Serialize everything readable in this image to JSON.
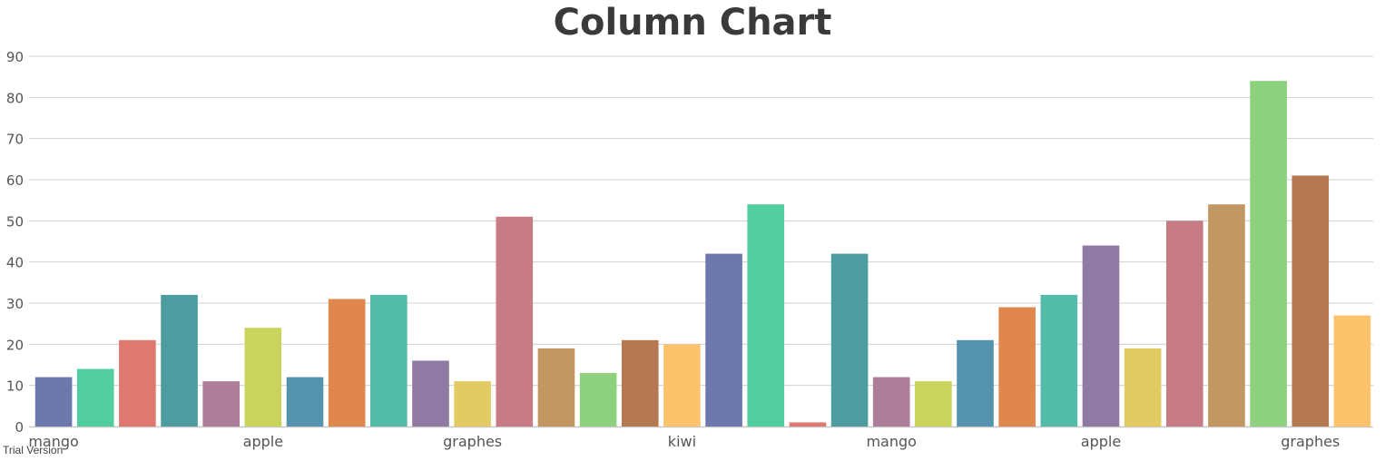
{
  "chart_data": {
    "type": "bar",
    "title": "Column Chart",
    "xlabel": "",
    "ylabel": "",
    "ylim": [
      0,
      90
    ],
    "yticks": [
      0,
      10,
      20,
      30,
      40,
      50,
      60,
      70,
      80,
      90
    ],
    "grid": true,
    "labeled_categories": [
      "mango",
      "apple",
      "graphes",
      "kiwi",
      "mango",
      "apple",
      "graphes"
    ],
    "values": [
      12,
      14,
      21,
      32,
      11,
      24,
      12,
      31,
      32,
      16,
      11,
      51,
      19,
      13,
      21,
      20,
      42,
      54,
      1,
      42,
      12,
      11,
      21,
      29,
      32,
      44,
      19,
      50,
      54,
      84,
      61,
      27
    ],
    "colors": [
      "#6D78AD",
      "#51CDA0",
      "#DF7970",
      "#4C9CA0",
      "#AE7D99",
      "#C9D45C",
      "#5592AD",
      "#DF874D",
      "#52BCA8",
      "#8E7AA3",
      "#E3CB64",
      "#C77B85",
      "#C39762",
      "#8DD17E",
      "#B57952",
      "#FCC26C"
    ]
  },
  "watermark": "Trial Version"
}
